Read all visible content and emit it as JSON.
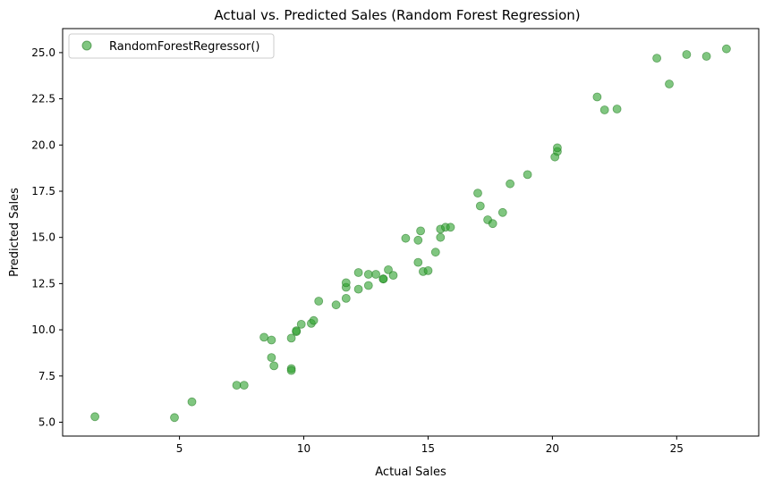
{
  "chart_data": {
    "type": "scatter",
    "title": "Actual vs. Predicted Sales (Random Forest Regression)",
    "xlabel": "Actual Sales",
    "ylabel": "Predicted Sales",
    "xlim": [
      0.3,
      28.3
    ],
    "ylim": [
      4.25,
      26.3
    ],
    "xticks": [
      5,
      10,
      15,
      20,
      25
    ],
    "yticks": [
      5.0,
      7.5,
      10.0,
      12.5,
      15.0,
      17.5,
      20.0,
      22.5,
      25.0
    ],
    "grid": false,
    "legend": "top-left",
    "colors": {
      "points": "#2ca02c",
      "point_edge": "#1f7a1f"
    },
    "series": [
      {
        "name": "RandomForestRegressor()",
        "points": [
          [
            1.6,
            5.3
          ],
          [
            4.8,
            5.25
          ],
          [
            5.5,
            6.1
          ],
          [
            7.3,
            7.0
          ],
          [
            7.6,
            7.0
          ],
          [
            8.4,
            9.6
          ],
          [
            8.7,
            9.45
          ],
          [
            8.7,
            8.5
          ],
          [
            8.8,
            8.05
          ],
          [
            9.5,
            7.9
          ],
          [
            9.5,
            7.8
          ],
          [
            9.5,
            9.55
          ],
          [
            9.7,
            9.9
          ],
          [
            9.7,
            9.95
          ],
          [
            9.9,
            10.3
          ],
          [
            10.3,
            10.35
          ],
          [
            10.4,
            10.5
          ],
          [
            10.6,
            11.55
          ],
          [
            11.3,
            11.35
          ],
          [
            11.7,
            11.7
          ],
          [
            11.7,
            12.3
          ],
          [
            11.7,
            12.55
          ],
          [
            12.2,
            12.2
          ],
          [
            12.2,
            13.1
          ],
          [
            12.6,
            12.4
          ],
          [
            12.6,
            13.0
          ],
          [
            12.9,
            13.0
          ],
          [
            13.2,
            12.75
          ],
          [
            13.2,
            12.75
          ],
          [
            13.4,
            13.25
          ],
          [
            13.6,
            12.95
          ],
          [
            14.1,
            14.95
          ],
          [
            14.6,
            13.65
          ],
          [
            14.6,
            14.85
          ],
          [
            14.7,
            15.35
          ],
          [
            14.8,
            13.15
          ],
          [
            15.0,
            13.2
          ],
          [
            15.3,
            14.2
          ],
          [
            15.5,
            15.0
          ],
          [
            15.5,
            15.45
          ],
          [
            15.7,
            15.55
          ],
          [
            15.9,
            15.55
          ],
          [
            17.0,
            17.4
          ],
          [
            17.1,
            16.7
          ],
          [
            17.4,
            15.95
          ],
          [
            17.6,
            15.75
          ],
          [
            18.0,
            16.35
          ],
          [
            18.3,
            17.9
          ],
          [
            19.0,
            18.4
          ],
          [
            20.1,
            19.35
          ],
          [
            20.2,
            19.65
          ],
          [
            20.2,
            19.85
          ],
          [
            21.8,
            22.6
          ],
          [
            22.1,
            21.9
          ],
          [
            22.6,
            21.95
          ],
          [
            24.2,
            24.7
          ],
          [
            24.7,
            23.3
          ],
          [
            25.4,
            24.9
          ],
          [
            26.2,
            24.8
          ],
          [
            27.0,
            25.2
          ]
        ]
      }
    ]
  }
}
